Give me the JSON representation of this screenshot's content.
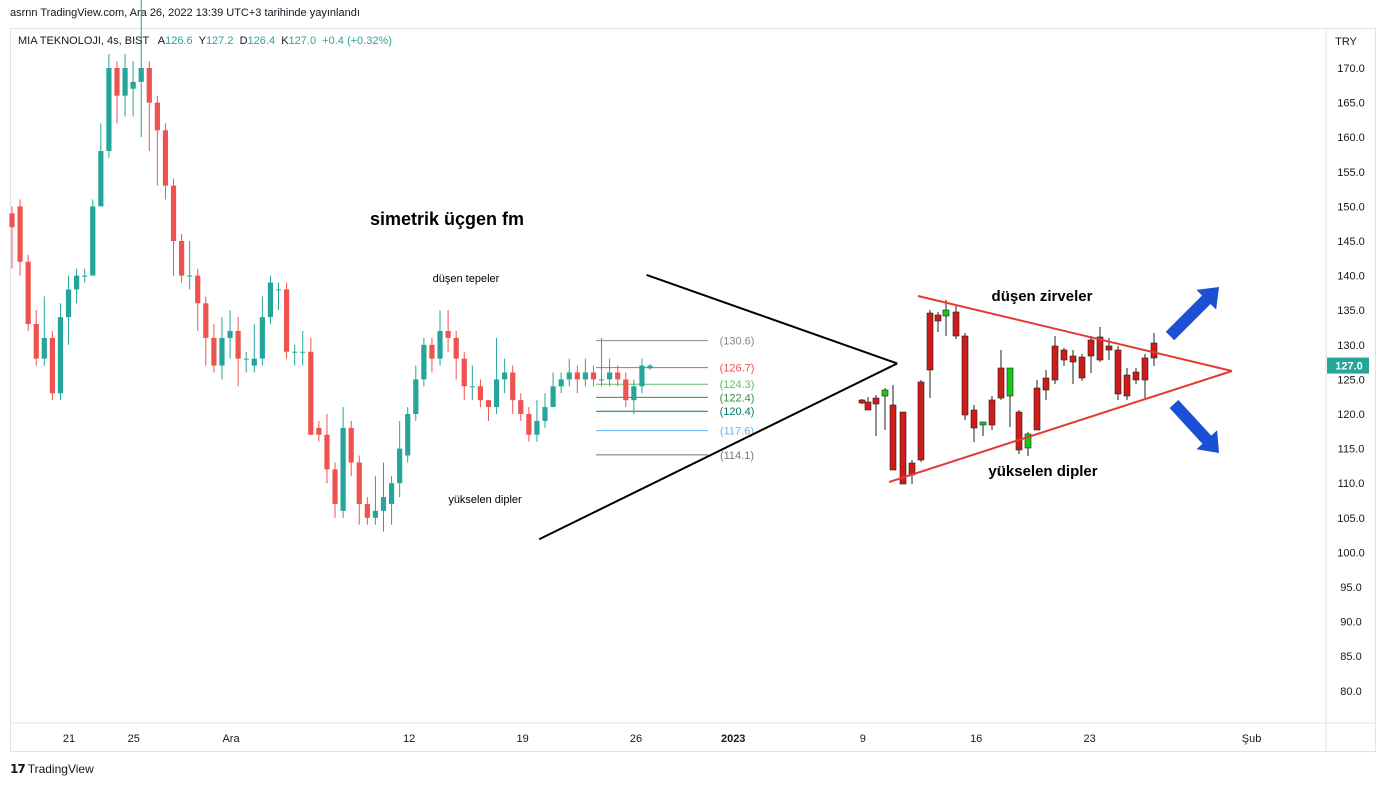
{
  "header": {
    "published": "asrnn TradingView.com, Ara 26, 2022 13:39 UTC+3 tarihinde yayınlandı"
  },
  "legend": {
    "symbol": "MIA TEKNOLOJI, 4s, BIST",
    "open_label": "A",
    "open": "126.6",
    "high_label": "Y",
    "high": "127.2",
    "low_label": "D",
    "low": "126.4",
    "close_label": "K",
    "close": "127.0",
    "change": "+0.4 (+0.32%)"
  },
  "footer": {
    "brand_logo": "17",
    "brand": "TradingView"
  },
  "colors": {
    "up": "#26a69a",
    "down": "#ef5350",
    "price_tag": "#26a69a",
    "sketch_up": "#19c819",
    "sketch_down": "#d11a1a",
    "sketch_lines": "#e53935",
    "arrows": "#1a4fd6",
    "fib_130_6": "#8a8a8a",
    "fib_126_7": "#ef5350",
    "fib_124_3": "#66bb6a",
    "fib_122_4": "#388e3c",
    "fib_120_4": "#00796b",
    "fib_117_6": "#64b5f6",
    "fib_114_1": "#757575"
  },
  "chart_data": {
    "type": "candlestick",
    "currency": "TRY",
    "y_ticks": [
      170,
      165,
      160,
      155,
      150,
      145,
      140,
      135,
      130,
      125,
      120,
      115,
      110,
      105,
      100,
      95,
      90,
      85,
      80
    ],
    "x_labels": [
      "21",
      "25",
      "Ara",
      "12",
      "19",
      "26",
      "2023",
      "9",
      "16",
      "23",
      "Şub"
    ],
    "last_price": "127.0",
    "grid": false,
    "candles": [
      [
        149,
        147,
        150,
        141
      ],
      [
        150,
        142,
        151,
        140
      ],
      [
        142,
        133,
        143,
        132
      ],
      [
        133,
        128,
        135,
        127
      ],
      [
        128,
        131,
        137,
        127
      ],
      [
        131,
        123,
        132,
        122
      ],
      [
        123,
        134,
        136,
        122
      ],
      [
        134,
        138,
        140,
        130
      ],
      [
        138,
        140,
        141,
        136
      ],
      [
        140,
        140,
        141,
        139
      ],
      [
        140,
        150,
        151,
        148
      ],
      [
        150,
        158,
        162,
        153
      ],
      [
        158,
        170,
        172,
        157
      ],
      [
        170,
        166,
        171,
        162
      ],
      [
        166,
        170,
        172,
        163
      ],
      [
        167,
        168,
        171,
        163
      ],
      [
        168,
        170,
        180,
        160
      ],
      [
        170,
        165,
        171,
        158
      ],
      [
        165,
        161,
        166,
        153
      ],
      [
        161,
        153,
        162,
        151
      ],
      [
        153,
        145,
        154,
        140
      ],
      [
        145,
        140,
        146,
        139
      ],
      [
        140,
        140,
        145,
        138
      ],
      [
        140,
        136,
        141,
        132
      ],
      [
        136,
        131,
        137,
        127
      ],
      [
        131,
        127,
        133,
        126
      ],
      [
        127,
        131,
        134,
        125
      ],
      [
        131,
        132,
        135,
        128
      ],
      [
        132,
        128,
        134,
        124
      ],
      [
        128,
        128,
        129,
        126
      ],
      [
        127,
        128,
        133,
        126
      ],
      [
        128,
        134,
        137,
        127
      ],
      [
        134,
        139,
        140,
        133
      ],
      [
        138,
        138,
        139,
        135
      ],
      [
        138,
        129,
        139,
        128
      ],
      [
        129,
        129,
        130,
        127
      ],
      [
        129,
        129,
        132,
        127
      ],
      [
        129,
        117,
        131,
        117
      ],
      [
        118,
        117,
        119,
        116
      ],
      [
        117,
        112,
        120,
        110
      ],
      [
        112,
        107,
        113,
        105
      ],
      [
        106,
        118,
        121,
        105
      ],
      [
        118,
        113,
        119,
        111
      ],
      [
        113,
        107,
        114,
        104
      ],
      [
        107,
        105,
        108,
        104
      ],
      [
        105,
        106,
        111,
        104
      ],
      [
        106,
        108,
        113,
        103
      ],
      [
        107,
        110,
        111,
        104
      ],
      [
        110,
        115,
        119,
        108
      ],
      [
        114,
        120,
        121,
        113
      ],
      [
        120,
        125,
        127,
        119
      ],
      [
        125,
        130,
        131,
        124
      ],
      [
        130,
        128,
        131,
        126
      ],
      [
        128,
        132,
        135,
        127
      ],
      [
        132,
        131,
        135,
        129
      ],
      [
        131,
        128,
        132,
        125
      ],
      [
        128,
        124,
        129,
        122
      ],
      [
        124,
        124,
        127,
        122
      ],
      [
        124,
        122,
        125,
        121
      ],
      [
        122,
        121,
        122,
        119
      ],
      [
        121,
        125,
        131,
        120
      ],
      [
        125,
        126,
        128,
        123
      ],
      [
        126,
        122,
        127,
        120
      ],
      [
        122,
        120,
        123,
        119
      ],
      [
        120,
        117,
        121,
        116
      ],
      [
        117,
        119,
        122,
        116
      ],
      [
        119,
        121,
        123,
        118
      ],
      [
        121,
        124,
        126,
        122
      ],
      [
        124,
        125,
        126,
        123
      ],
      [
        125,
        126,
        128,
        124
      ],
      [
        126,
        125,
        127,
        123
      ],
      [
        125,
        126,
        128,
        124
      ],
      [
        126,
        125,
        127,
        124
      ],
      [
        125,
        125,
        131,
        124
      ],
      [
        125,
        126,
        128,
        124
      ],
      [
        126,
        125,
        127,
        124
      ],
      [
        125,
        122,
        126,
        121
      ],
      [
        122,
        124,
        125,
        120
      ],
      [
        124,
        127,
        128,
        123
      ],
      [
        126.6,
        127,
        127.2,
        126.4
      ]
    ],
    "levels": [
      "130.6",
      "126.7",
      "124.3",
      "122.4",
      "120.4",
      "117.6",
      "114.1"
    ],
    "annotations": {
      "title": "simetrik üçgen fm",
      "upper_line": "düşen tepeler",
      "lower_line": "yükselen dipler",
      "sketch_upper": "düşen zirveler",
      "sketch_lower": "yükselen dipler"
    },
    "trendlines": {
      "upper_start": [
        "29",
        140.1
      ],
      "upper_end": [
        "52",
        127.3
      ],
      "lower_start": [
        "37",
        101.9
      ],
      "lower_end": [
        "52",
        127.3
      ]
    }
  }
}
